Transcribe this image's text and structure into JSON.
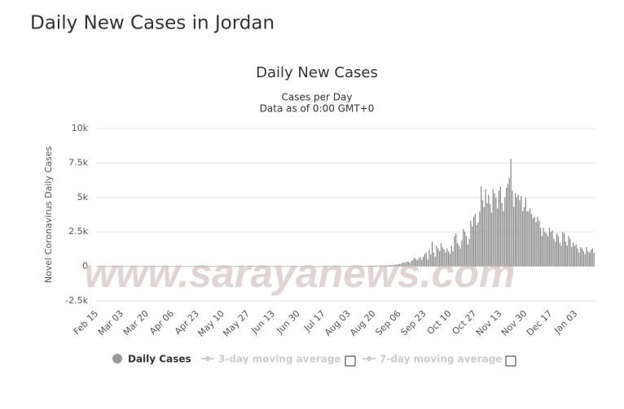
{
  "header": {
    "title": "Daily New Cases in Jordan"
  },
  "watermark": "www.sarayanews.com",
  "chart_data": {
    "type": "bar",
    "title": "Daily New Cases",
    "subtitle": [
      "Cases per Day",
      "Data as of 0:00 GMT+0"
    ],
    "y_label": "Novel Coronavirus Daily Cases",
    "ylim": [
      -2500,
      10000
    ],
    "yticks": [
      {
        "value": -2500,
        "label": "-2.5k"
      },
      0,
      {
        "value": 2500,
        "label": "2.5k"
      },
      {
        "value": 5000,
        "label": "5k"
      },
      {
        "value": 7500,
        "label": "7.5k"
      },
      {
        "value": 10000,
        "label": "10k"
      }
    ],
    "grid": true,
    "legend_inactive": [
      "3-day moving average",
      "7-day moving average"
    ],
    "categories": [
      "Feb 15",
      null,
      null,
      null,
      null,
      null,
      null,
      null,
      null,
      null,
      null,
      null,
      null,
      null,
      null,
      null,
      null,
      "Mar 03",
      null,
      null,
      null,
      null,
      null,
      null,
      null,
      null,
      null,
      null,
      null,
      null,
      null,
      null,
      null,
      null,
      "Mar 20",
      null,
      null,
      null,
      null,
      null,
      null,
      null,
      null,
      null,
      null,
      null,
      null,
      null,
      null,
      null,
      null,
      "Apr 06",
      null,
      null,
      null,
      null,
      null,
      null,
      null,
      null,
      null,
      null,
      null,
      null,
      null,
      null,
      null,
      null,
      "Apr 23",
      null,
      null,
      null,
      null,
      null,
      null,
      null,
      null,
      null,
      null,
      null,
      null,
      null,
      null,
      null,
      null,
      "May 10",
      null,
      null,
      null,
      null,
      null,
      null,
      null,
      null,
      null,
      null,
      null,
      null,
      null,
      null,
      null,
      null,
      "May 27",
      null,
      null,
      null,
      null,
      null,
      null,
      null,
      null,
      null,
      null,
      null,
      null,
      null,
      null,
      null,
      null,
      "Jun 13",
      null,
      null,
      null,
      null,
      null,
      null,
      null,
      null,
      null,
      null,
      null,
      null,
      null,
      null,
      null,
      null,
      "Jun 30",
      null,
      null,
      null,
      null,
      null,
      null,
      null,
      null,
      null,
      null,
      null,
      null,
      null,
      null,
      null,
      null,
      "Jul 17",
      null,
      null,
      null,
      null,
      null,
      null,
      null,
      null,
      null,
      null,
      null,
      null,
      null,
      null,
      null,
      null,
      "Aug 03",
      null,
      null,
      null,
      null,
      null,
      null,
      null,
      null,
      null,
      null,
      null,
      null,
      null,
      null,
      null,
      null,
      "Aug 20",
      null,
      null,
      null,
      null,
      null,
      null,
      null,
      null,
      null,
      null,
      null,
      null,
      null,
      null,
      null,
      null,
      "Sep 06",
      null,
      null,
      null,
      null,
      null,
      null,
      null,
      null,
      null,
      null,
      null,
      null,
      null,
      null,
      null,
      null,
      "Sep 23",
      null,
      null,
      null,
      null,
      null,
      null,
      null,
      null,
      null,
      null,
      null,
      null,
      null,
      null,
      null,
      null,
      "Oct 10",
      null,
      null,
      null,
      null,
      null,
      null,
      null,
      null,
      null,
      null,
      null,
      null,
      null,
      null,
      null,
      null,
      "Oct 27",
      null,
      null,
      null,
      null,
      null,
      null,
      null,
      null,
      null,
      null,
      null,
      null,
      null,
      null,
      null,
      null,
      "Nov 13",
      null,
      null,
      null,
      null,
      null,
      null,
      null,
      null,
      null,
      null,
      null,
      null,
      null,
      null,
      null,
      null,
      "Nov 30",
      null,
      null,
      null,
      null,
      null,
      null,
      null,
      null,
      null,
      null,
      null,
      null,
      null,
      null,
      null,
      null,
      "Dec 17",
      null,
      null,
      null,
      null,
      null,
      null,
      null,
      null,
      null,
      null,
      null,
      null,
      null,
      null,
      null,
      null,
      "Jan 03",
      null,
      null,
      null,
      null,
      null,
      null,
      null,
      null,
      null,
      null,
      null,
      null
    ],
    "series": [
      {
        "name": "Daily Cases",
        "color": "#8c8c8c",
        "values": [
          0,
          0,
          0,
          0,
          0,
          0,
          0,
          0,
          0,
          0,
          0,
          0,
          0,
          0,
          0,
          0,
          0,
          0,
          1,
          0,
          0,
          0,
          0,
          0,
          0,
          0,
          0,
          0,
          0,
          1,
          0,
          11,
          0,
          5,
          19,
          13,
          15,
          29,
          16,
          28,
          40,
          19,
          21,
          15,
          27,
          7,
          5,
          10,
          6,
          6,
          8,
          14,
          3,
          4,
          4,
          4,
          5,
          2,
          2,
          1,
          9,
          3,
          0,
          1,
          5,
          3,
          4,
          2,
          2,
          3,
          1,
          0,
          4,
          3,
          0,
          4,
          2,
          4,
          5,
          8,
          4,
          3,
          2,
          1,
          3,
          12,
          9,
          5,
          11,
          3,
          10,
          4,
          2,
          1,
          2,
          3,
          11,
          6,
          18,
          6,
          7,
          2,
          3,
          10,
          14,
          12,
          22,
          11,
          20,
          9,
          11,
          16,
          5,
          7,
          11,
          6,
          4,
          2,
          8,
          3,
          6,
          3,
          4,
          2,
          2,
          1,
          4,
          3,
          2,
          2,
          5,
          3,
          2,
          0,
          1,
          4,
          3,
          2,
          4,
          6,
          3,
          3,
          2,
          5,
          3,
          2,
          2,
          2,
          3,
          1,
          3,
          1,
          2,
          4,
          1,
          2,
          4,
          6,
          5,
          6,
          2,
          3,
          8,
          5,
          7,
          10,
          9,
          7,
          12,
          14,
          8,
          15,
          12,
          17,
          21,
          16,
          22,
          29,
          40,
          36,
          23,
          19,
          31,
          45,
          39,
          27,
          33,
          46,
          52,
          48,
          60,
          55,
          70,
          58,
          64,
          80,
          63,
          95,
          74,
          110,
          90,
          120,
          134,
          150,
          190,
          170,
          260,
          300,
          250,
          350,
          330,
          250,
          400,
          480,
          620,
          540,
          430,
          600,
          650,
          480,
          700,
          900,
          1000,
          520,
          1200,
          860,
          1800,
          1000,
          700,
          1500,
          1300,
          1100,
          1700,
          1400,
          1250,
          1000,
          1300,
          1100,
          900,
          1500,
          1100,
          2200,
          2400,
          1700,
          1500,
          1300,
          1900,
          2700,
          2500,
          2200,
          1600,
          2000,
          3300,
          2900,
          3600,
          3800,
          3000,
          3200,
          4000,
          5800,
          4800,
          4300,
          5600,
          4600,
          5200,
          4500,
          3900,
          5600,
          5300,
          5000,
          4200,
          5500,
          5800,
          4600,
          4000,
          5000,
          5700,
          6000,
          6400,
          7800,
          5500,
          4300,
          5300,
          5000,
          5200,
          4800,
          5100,
          4000,
          4300,
          5000,
          4000,
          4000,
          4200,
          3800,
          3500,
          3600,
          3200,
          3600,
          3300,
          2800,
          2200,
          2800,
          2500,
          2400,
          2200,
          2800,
          2500,
          2600,
          2000,
          1800,
          2400,
          2200,
          1700,
          1500,
          2500,
          2400,
          1800,
          1500,
          2200,
          2000,
          1400,
          1700,
          1500,
          1600,
          1300,
          1000,
          1400,
          1300,
          1100,
          900,
          1400,
          1100,
          1000,
          1200,
          1300,
          1000
        ]
      }
    ]
  }
}
